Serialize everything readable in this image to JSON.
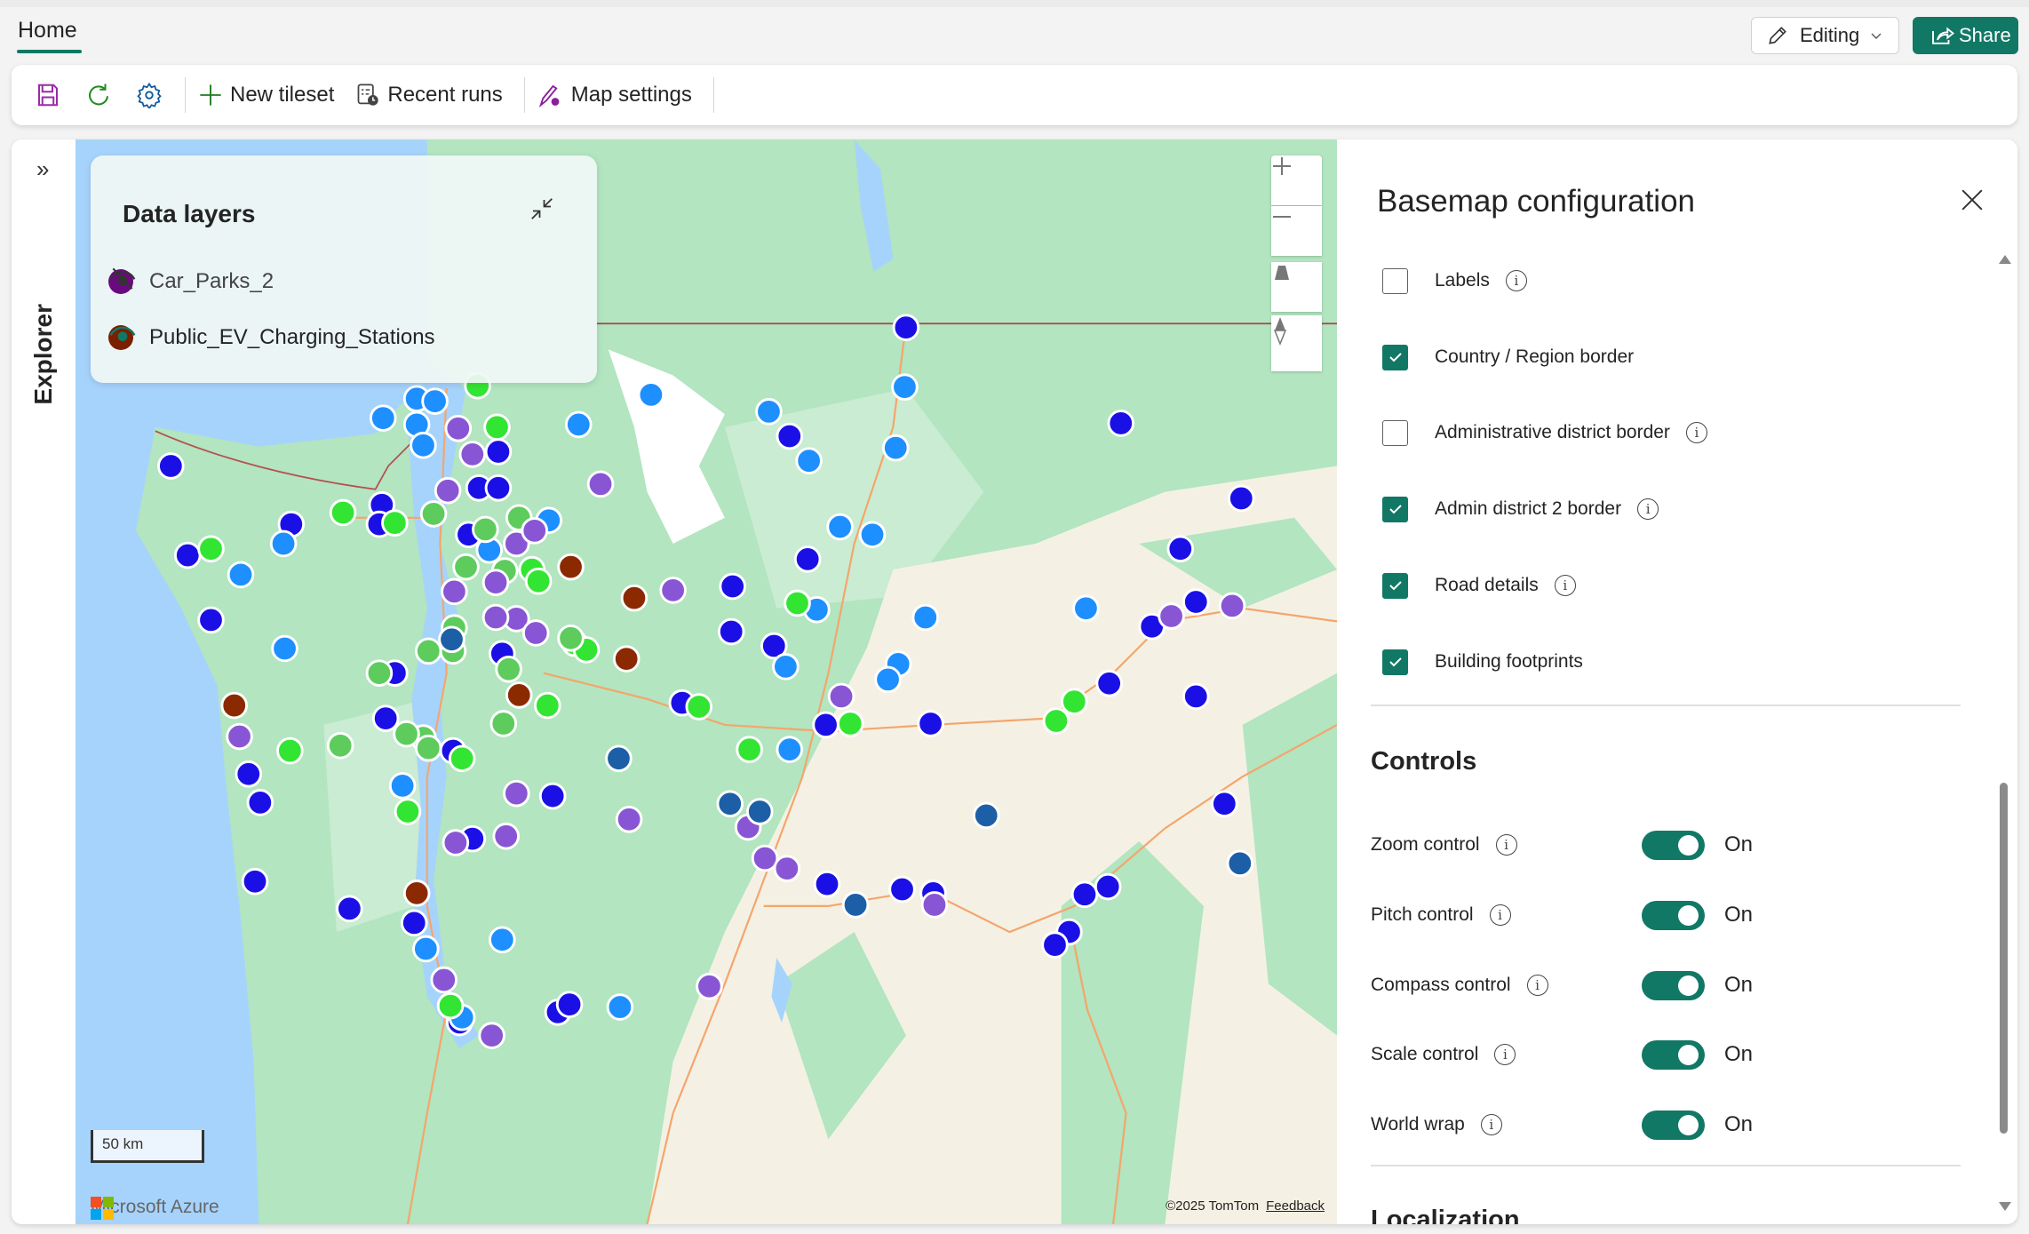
{
  "header": {
    "tab": "Home",
    "editing_label": "Editing",
    "share_label": "Share"
  },
  "toolbar": {
    "items": [
      {
        "icon": "save-icon"
      },
      {
        "icon": "refresh-icon"
      },
      {
        "icon": "gear-icon"
      }
    ],
    "new_tileset": "New tileset",
    "recent_runs": "Recent runs",
    "map_settings": "Map settings"
  },
  "explorer": {
    "label": "Explorer"
  },
  "data_layers": {
    "title": "Data layers",
    "layers": [
      {
        "name": "Car_Parks_2",
        "color": "#6a0a7e",
        "visible": false
      },
      {
        "name": "Public_EV_Charging_Stations",
        "color": "#7a1f00",
        "visible": true
      }
    ]
  },
  "map": {
    "scale_label": "50 km",
    "brand": "Microsoft Azure",
    "copyright": "©2025 TomTom",
    "feedback": "Feedback",
    "marker_colors": {
      "b": "#1a10e6",
      "l": "#1e8fff",
      "g": "#33e533",
      "m": "#5dcc5d",
      "p": "#8856d4",
      "r": "#8b2a00",
      "n": "#1d5fa6"
    }
  },
  "panel": {
    "title": "Basemap configuration",
    "options": [
      {
        "label": "Labels",
        "checked": false,
        "info": true
      },
      {
        "label": "Country / Region border",
        "checked": true,
        "info": false
      },
      {
        "label": "Administrative district border",
        "checked": false,
        "info": true
      },
      {
        "label": "Admin district 2 border",
        "checked": true,
        "info": true
      },
      {
        "label": "Road details",
        "checked": true,
        "info": true
      },
      {
        "label": "Building footprints",
        "checked": true,
        "info": false
      }
    ],
    "controls_title": "Controls",
    "controls": [
      {
        "label": "Zoom control",
        "value": "On"
      },
      {
        "label": "Pitch control",
        "value": "On"
      },
      {
        "label": "Compass control",
        "value": "On"
      },
      {
        "label": "Scale control",
        "value": "On"
      },
      {
        "label": "World wrap",
        "value": "On"
      }
    ],
    "localization_title": "Localization"
  },
  "colors": {
    "accent": "#117865"
  }
}
